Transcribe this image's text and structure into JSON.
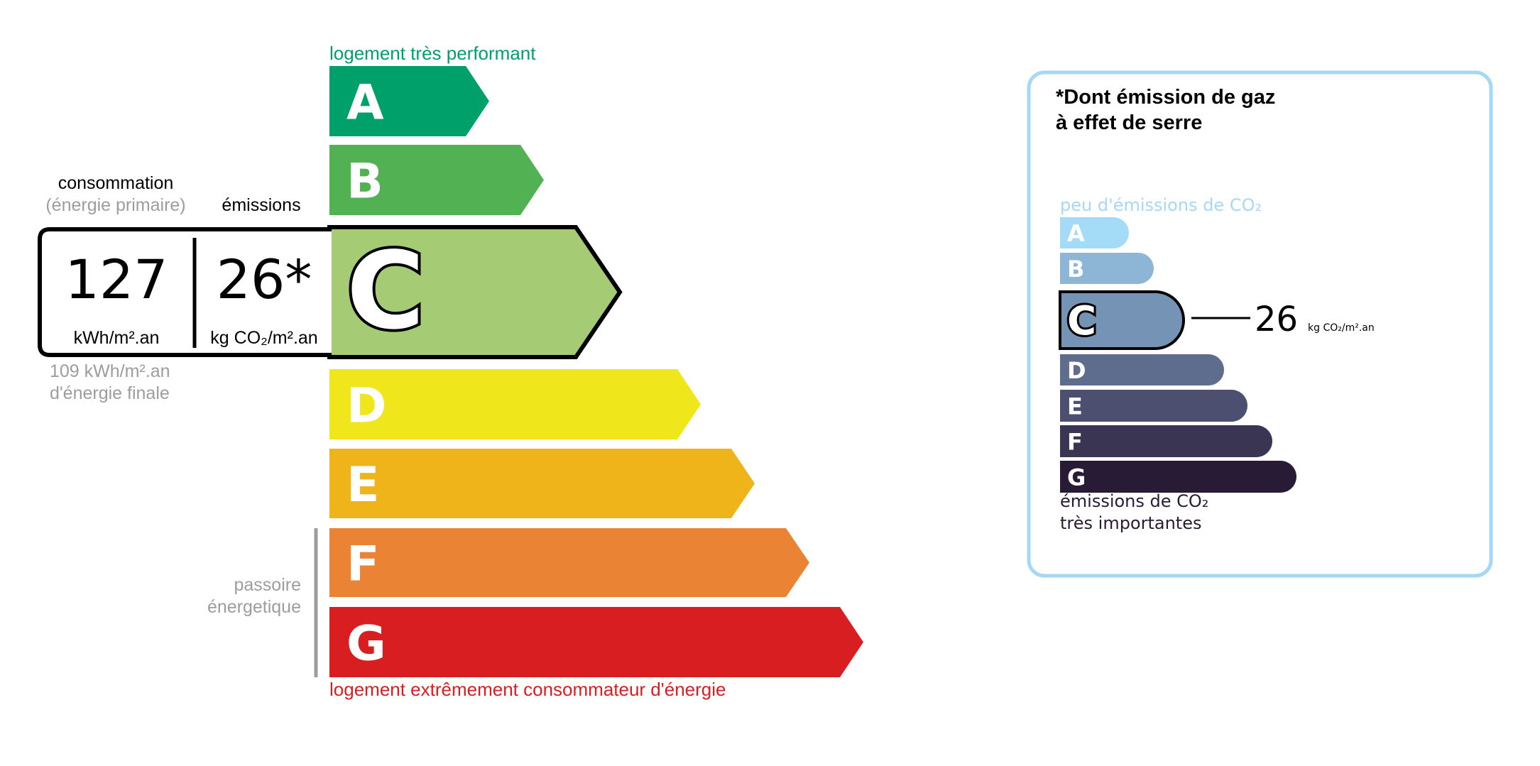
{
  "energy": {
    "top_label": "logement très performant",
    "bottom_label": "logement extrêmement consommateur d'énergie",
    "passoire_label": [
      "passoire",
      "énergetique"
    ],
    "classes": [
      {
        "letter": "A",
        "color": "#00a06b"
      },
      {
        "letter": "B",
        "color": "#52b153"
      },
      {
        "letter": "C",
        "color": "#a5cc74"
      },
      {
        "letter": "D",
        "color": "#f0e61c"
      },
      {
        "letter": "E",
        "color": "#efb41a"
      },
      {
        "letter": "F",
        "color": "#ea8333"
      },
      {
        "letter": "G",
        "color": "#d81e20"
      }
    ],
    "current_class": "C",
    "consumption_header": "consommation",
    "consumption_subheader": "(énergie primaire)",
    "emissions_header": "émissions",
    "consumption_value": "127",
    "consumption_unit": "kWh/m².an",
    "emissions_value": "26*",
    "emissions_unit": "kg CO₂/m².an",
    "final_energy": "109 kWh/m².an",
    "final_energy_label": "d'énergie finale"
  },
  "ges": {
    "title_line1": "*Dont émission de gaz",
    "title_line2": "à effet de serre",
    "top_label": "peu d'émissions de CO₂",
    "bottom_label_line1": "émissions de CO₂",
    "bottom_label_line2": "très importantes",
    "border_color": "#a4d8f4",
    "classes": [
      {
        "letter": "A",
        "color": "#a4dbf6"
      },
      {
        "letter": "B",
        "color": "#8db5d5"
      },
      {
        "letter": "C",
        "color": "#7593b4"
      },
      {
        "letter": "D",
        "color": "#5e6c8e"
      },
      {
        "letter": "E",
        "color": "#4d4f70"
      },
      {
        "letter": "F",
        "color": "#393552"
      },
      {
        "letter": "G",
        "color": "#281b35"
      }
    ],
    "current_class": "C",
    "value": "26",
    "unit": "kg CO₂/m².an"
  }
}
